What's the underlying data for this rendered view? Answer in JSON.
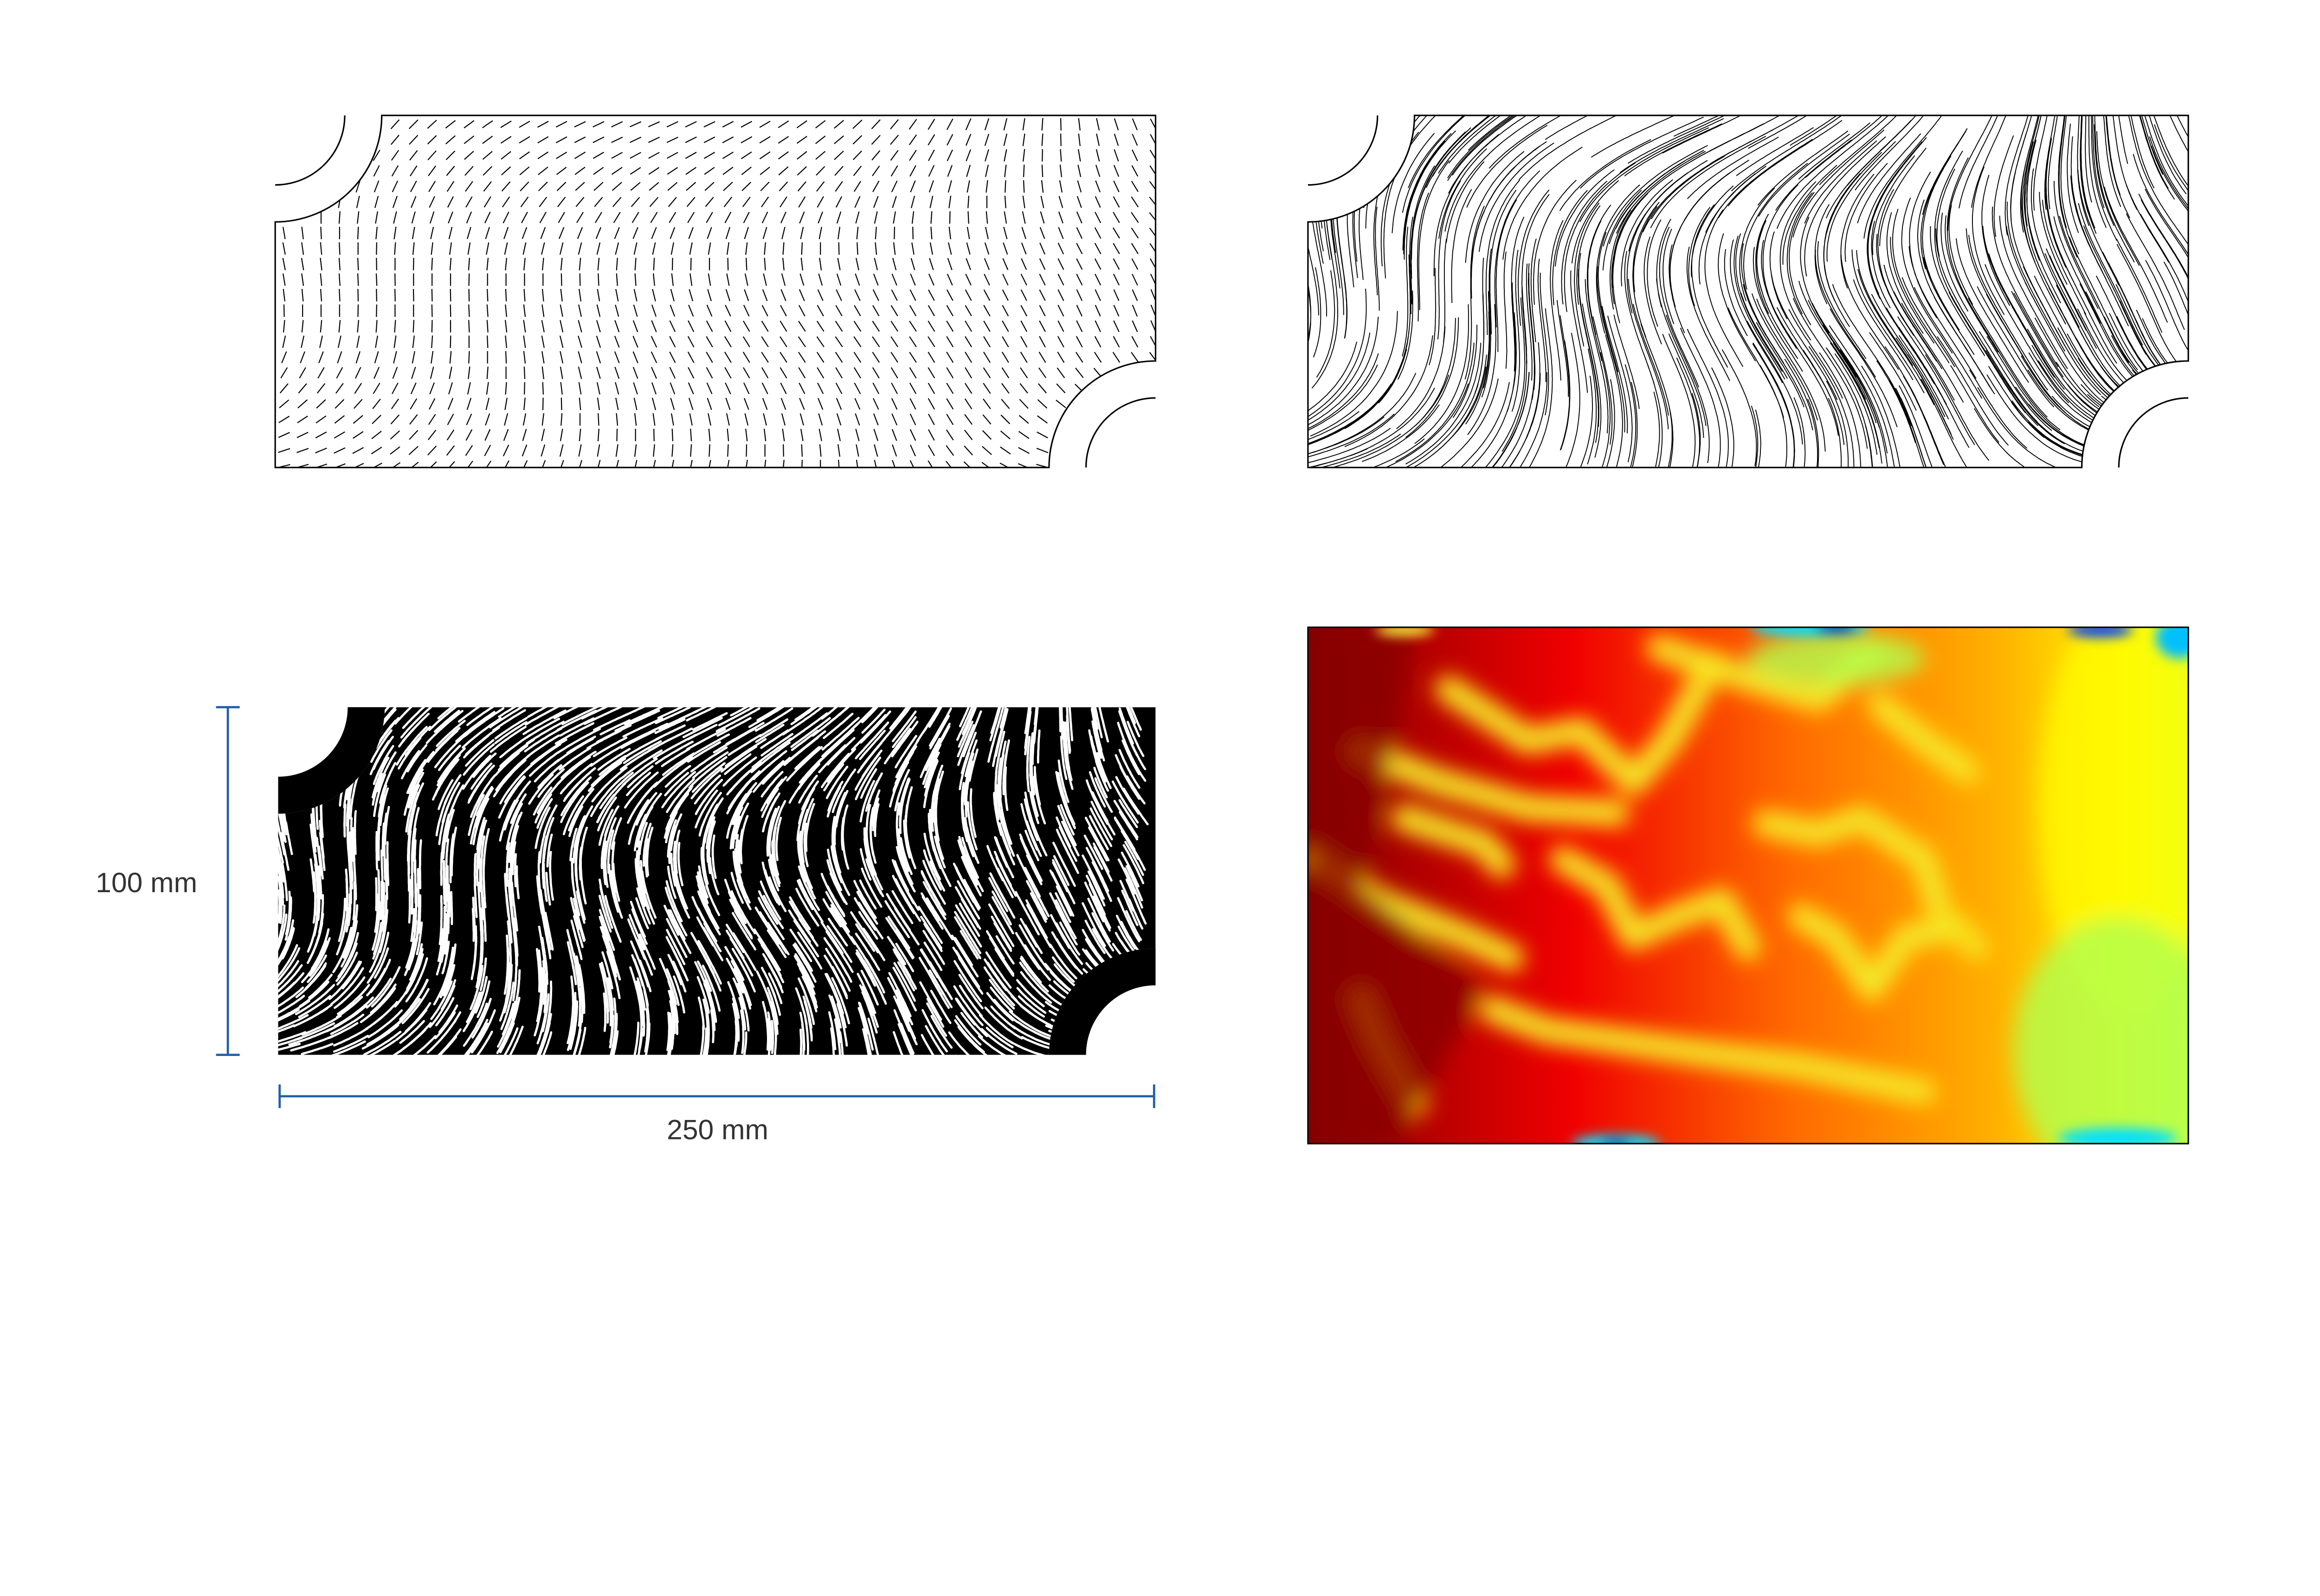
{
  "dimensions": {
    "height_label": "100 mm",
    "width_label": "250 mm"
  },
  "colors": {
    "dimension_line": "#1f5fa8",
    "outline": "#000000",
    "pattern_background": "#000000",
    "pattern_stripes": "#ffffff",
    "heatmap_colormap": [
      "#7f0000",
      "#ff0000",
      "#ff8c00",
      "#ffff00",
      "#aaff55",
      "#00ffff",
      "#0000ff"
    ]
  },
  "panels": [
    {
      "id": "orientation-field",
      "style": "short line segments"
    },
    {
      "id": "streamlines",
      "style": "continuous black lines"
    },
    {
      "id": "stripe-pattern",
      "style": "white stripes on black"
    },
    {
      "id": "heatmap",
      "style": "jet colormap field"
    }
  ]
}
